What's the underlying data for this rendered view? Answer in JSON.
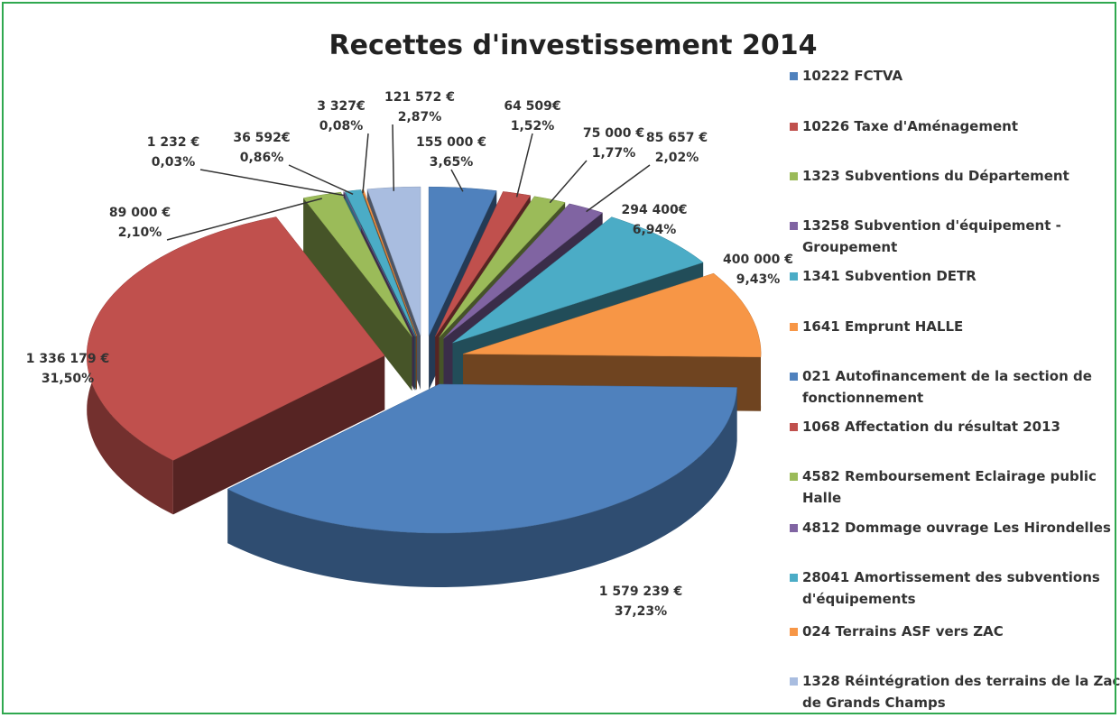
{
  "chart_data": {
    "type": "pie3d",
    "title": "Recettes d'investissement 2014",
    "categories": [
      "10222 FCTVA",
      "10226 Taxe d'Aménagement",
      "1323 Subventions du Département",
      "13258 Subvention d'équipement - Groupement",
      "1341 Subvention DETR",
      "1641 Emprunt HALLE",
      "021 Autofinancement de la section de fonctionnement",
      "1068 Affectation du résultat 2013",
      "4582 Remboursement Eclairage public Halle",
      "4812 Dommage ouvrage Les Hirondelles",
      "28041 Amortissement des subventions d'équipements",
      "024 Terrains ASF vers ZAC",
      "1328 Réintégration des terrains de la Zac de Grands Champs"
    ],
    "values": [
      155000,
      64509,
      75000,
      85657,
      294400,
      400000,
      1579239,
      1336179,
      89000,
      1232,
      36592,
      3327,
      121572
    ],
    "value_labels": [
      "155 000 €",
      "64 509€",
      "75 000 €",
      "85 657 €",
      "294 400€",
      "400 000 €",
      "1 579 239  €",
      "1 336 179 €",
      "89 000 €",
      "1 232 €",
      "36 592€",
      "3 327€",
      "121 572 €"
    ],
    "percentages": [
      3.65,
      1.52,
      1.77,
      2.02,
      6.94,
      9.43,
      37.23,
      31.5,
      2.1,
      0.03,
      0.86,
      0.08,
      2.87
    ],
    "percentage_labels": [
      "3,65%",
      "1,52%",
      "1,77%",
      "2,02%",
      "6,94%",
      "9,43%",
      "37,23%",
      "31,50%",
      "2,10%",
      "0,03%",
      "0,86%",
      "0,08%",
      "2,87%"
    ],
    "colors": [
      "#4f81bd",
      "#c0504d",
      "#9bbb59",
      "#8064a2",
      "#4bacc6",
      "#f79646",
      "#4f81bd",
      "#c0504d",
      "#9bbb59",
      "#8064a2",
      "#4bacc6",
      "#f79646",
      "#a9bde0"
    ],
    "legend": "right"
  }
}
